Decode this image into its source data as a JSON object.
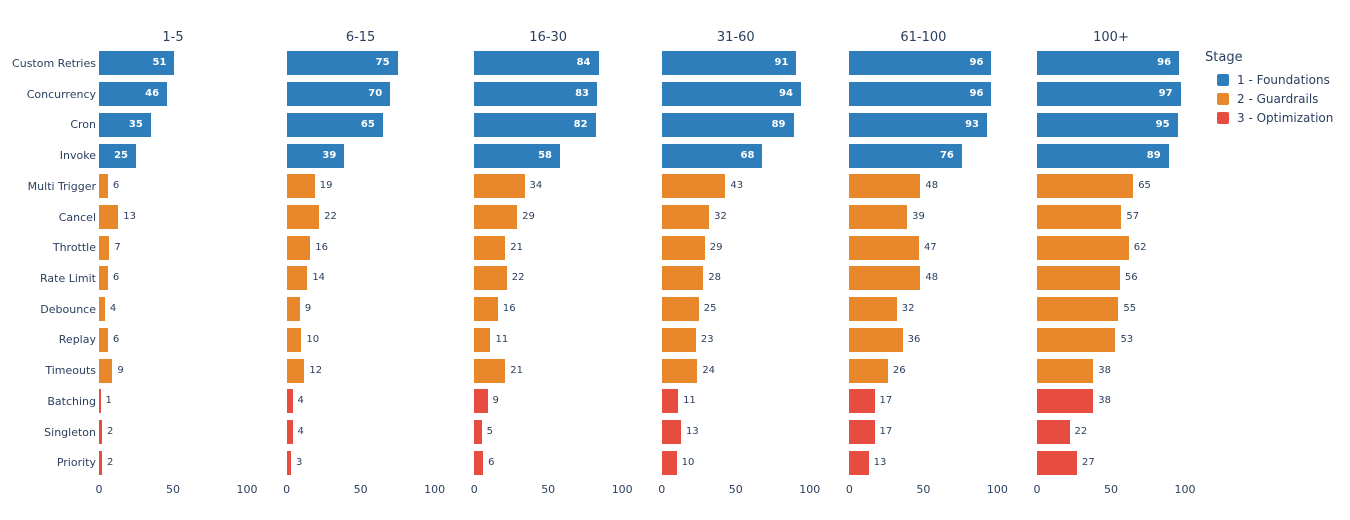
{
  "chart_data": {
    "type": "bar",
    "orientation": "horizontal",
    "grid": false,
    "facet_titles": [
      "1-5",
      "6-15",
      "16-30",
      "31-60",
      "61-100",
      "100+"
    ],
    "categories": [
      "Custom Retries",
      "Concurrency",
      "Cron",
      "Invoke",
      "Multi Trigger",
      "Cancel",
      "Throttle",
      "Rate Limit",
      "Debounce",
      "Replay",
      "Timeouts",
      "Batching",
      "Singleton",
      "Priority"
    ],
    "category_stages": [
      1,
      1,
      1,
      1,
      2,
      2,
      2,
      2,
      2,
      2,
      2,
      3,
      3,
      3
    ],
    "values": [
      [
        51,
        46,
        35,
        25,
        6,
        13,
        7,
        6,
        4,
        6,
        9,
        1,
        2,
        2
      ],
      [
        75,
        70,
        65,
        39,
        19,
        22,
        16,
        14,
        9,
        10,
        12,
        4,
        4,
        3
      ],
      [
        84,
        83,
        82,
        58,
        34,
        29,
        21,
        22,
        16,
        11,
        21,
        9,
        5,
        6
      ],
      [
        91,
        94,
        89,
        68,
        43,
        32,
        29,
        28,
        25,
        23,
        24,
        11,
        13,
        10
      ],
      [
        96,
        96,
        93,
        76,
        48,
        39,
        47,
        48,
        32,
        36,
        26,
        17,
        17,
        13
      ],
      [
        96,
        97,
        95,
        89,
        65,
        57,
        62,
        56,
        55,
        53,
        38,
        38,
        22,
        27
      ]
    ],
    "xlim": [
      0,
      100
    ],
    "xticks": [
      "0",
      "50",
      "100"
    ],
    "xtick_values": [
      0,
      50,
      100
    ],
    "legend": {
      "title": "Stage",
      "position": "top-right",
      "items": [
        {
          "label": "1 - Foundations",
          "color": "#2E7EBC"
        },
        {
          "label": "2 - Guardrails",
          "color": "#E8882B"
        },
        {
          "label": "3 - Optimization",
          "color": "#E64C3F"
        }
      ]
    },
    "colors": {
      "text": "#2a3f5f",
      "background": "#ffffff"
    }
  }
}
